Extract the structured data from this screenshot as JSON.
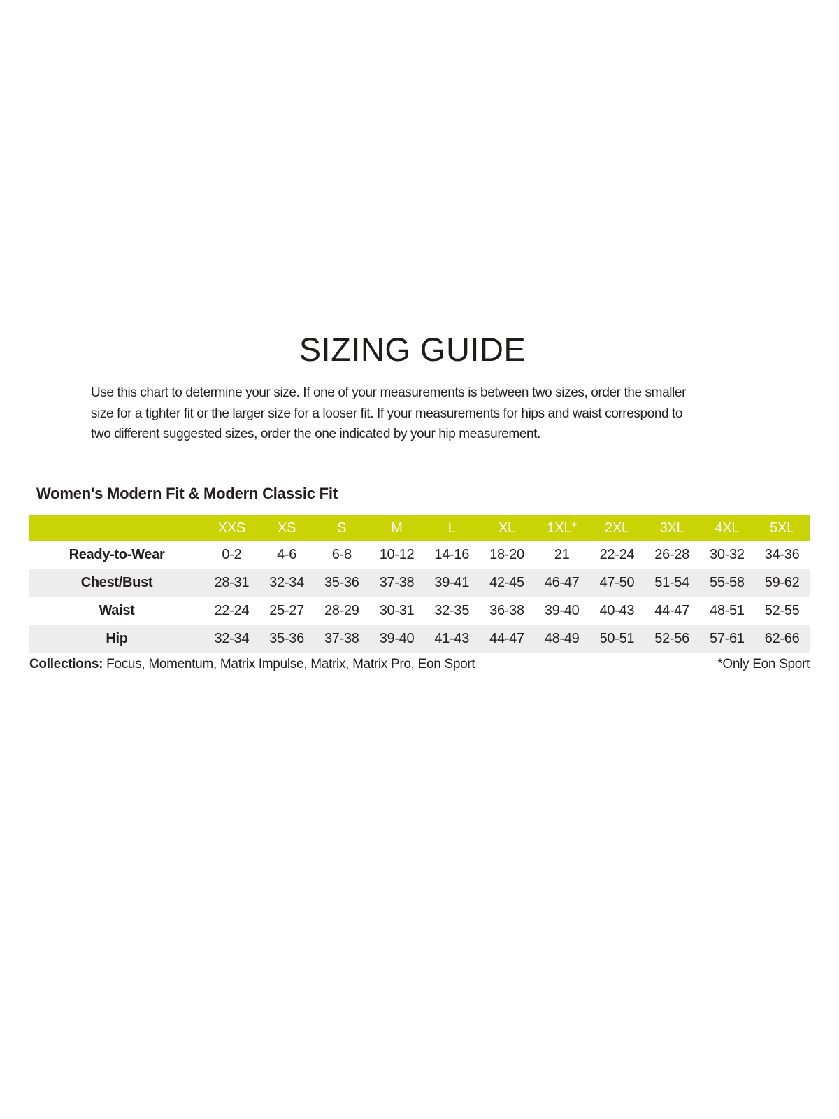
{
  "title": "SIZING GUIDE",
  "intro": {
    "lines": [
      "Use this chart to determine your size. If one of your measurements is between two sizes, order the smaller",
      "size for a tighter fit or the larger size for a looser fit. If your measurements for hips and waist correspond to",
      "two different suggested sizes, order the one indicated by your hip measurement."
    ]
  },
  "section": {
    "heading": "Women's Modern Fit & Modern Classic Fit"
  },
  "size_table": {
    "columns": [
      "",
      "XXS",
      "XS",
      "S",
      "M",
      "L",
      "XL",
      "1XL*",
      "2XL",
      "3XL",
      "4XL",
      "5XL"
    ],
    "rows": [
      {
        "label": "Ready-to-Wear",
        "values": [
          "0-2",
          "4-6",
          "6-8",
          "10-12",
          "14-16",
          "18-20",
          "21",
          "22-24",
          "26-28",
          "30-32",
          "34-36"
        ]
      },
      {
        "label": "Chest/Bust",
        "values": [
          "28-31",
          "32-34",
          "35-36",
          "37-38",
          "39-41",
          "42-45",
          "46-47",
          "47-50",
          "51-54",
          "55-58",
          "59-62"
        ]
      },
      {
        "label": "Waist",
        "values": [
          "22-24",
          "25-27",
          "28-29",
          "30-31",
          "32-35",
          "36-38",
          "39-40",
          "40-43",
          "44-47",
          "48-51",
          "52-55"
        ]
      },
      {
        "label": "Hip",
        "values": [
          "32-34",
          "35-36",
          "37-38",
          "39-40",
          "41-43",
          "44-47",
          "48-49",
          "50-51",
          "52-56",
          "57-61",
          "62-66"
        ]
      }
    ]
  },
  "footer": {
    "collections_label": "Collections:",
    "collections_text": " Focus, Momentum, Matrix Impulse, Matrix, Matrix Pro, Eon Sport",
    "note": "*Only Eon Sport"
  },
  "colors": {
    "header_band": "#cad303",
    "header_text": "#ffffff",
    "row_alt": "#ededed",
    "body_text": "#231f20"
  }
}
